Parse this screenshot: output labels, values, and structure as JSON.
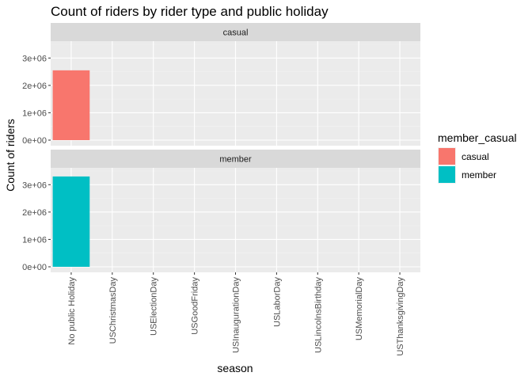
{
  "chart_data": {
    "type": "bar",
    "title": "Count of riders by rider type and public holiday",
    "xlabel": "season",
    "ylabel": "Count of riders",
    "categories": [
      "No public Holiday",
      "USChristmasDay",
      "USElectionDay",
      "USGoodFriday",
      "USInaugurationDay",
      "USLaborDay",
      "USLincolnsBirthday",
      "USMemorialDay",
      "USThanksgivingDay"
    ],
    "ylim": [
      0,
      3500000
    ],
    "yticks": [
      0,
      1000000,
      2000000,
      3000000
    ],
    "ytick_labels": [
      "0e+00",
      "1e+06",
      "2e+06",
      "3e+06"
    ],
    "grid": true,
    "facets": [
      {
        "strip": "casual",
        "series": "casual",
        "values": [
          2550000,
          0,
          0,
          0,
          0,
          0,
          0,
          0,
          0
        ]
      },
      {
        "strip": "member",
        "series": "member",
        "values": [
          3300000,
          0,
          0,
          0,
          0,
          0,
          0,
          0,
          0
        ]
      }
    ],
    "legend": {
      "title": "member_casual",
      "placement": "right",
      "entries": [
        {
          "label": "casual",
          "color": "#F8766D"
        },
        {
          "label": "member",
          "color": "#00BFC4"
        }
      ]
    }
  },
  "colors": {
    "panel_bg": "#EBEBEB",
    "strip_bg": "#D9D9D9",
    "grid_major": "#FFFFFF",
    "grid_minor": "#F2F2F2"
  }
}
